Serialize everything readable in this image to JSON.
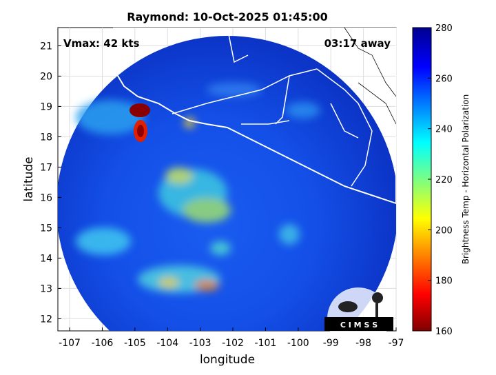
{
  "map": {
    "title": "Raymond: 10-Oct-2025 01:45:00",
    "xlabel": "longitude",
    "ylabel": "latitude",
    "xlim": [
      -107.36,
      -97
    ],
    "ylim": [
      11.6,
      21.6
    ],
    "xticks": [
      -107,
      -106,
      -105,
      -104,
      -103,
      -102,
      -101,
      -100,
      -99,
      -98,
      -97
    ],
    "yticks": [
      12,
      13,
      14,
      15,
      16,
      17,
      18,
      19,
      20,
      21
    ],
    "annotations": {
      "vmax": "Vmax: 42 kts",
      "away": "03:17 away"
    },
    "logo": "C I M S S",
    "colorbar": {
      "label": "Brightness Temp - Horizontal Polarization",
      "lim": [
        160,
        280
      ],
      "ticks": [
        160,
        180,
        200,
        220,
        240,
        260,
        280
      ]
    }
  }
}
